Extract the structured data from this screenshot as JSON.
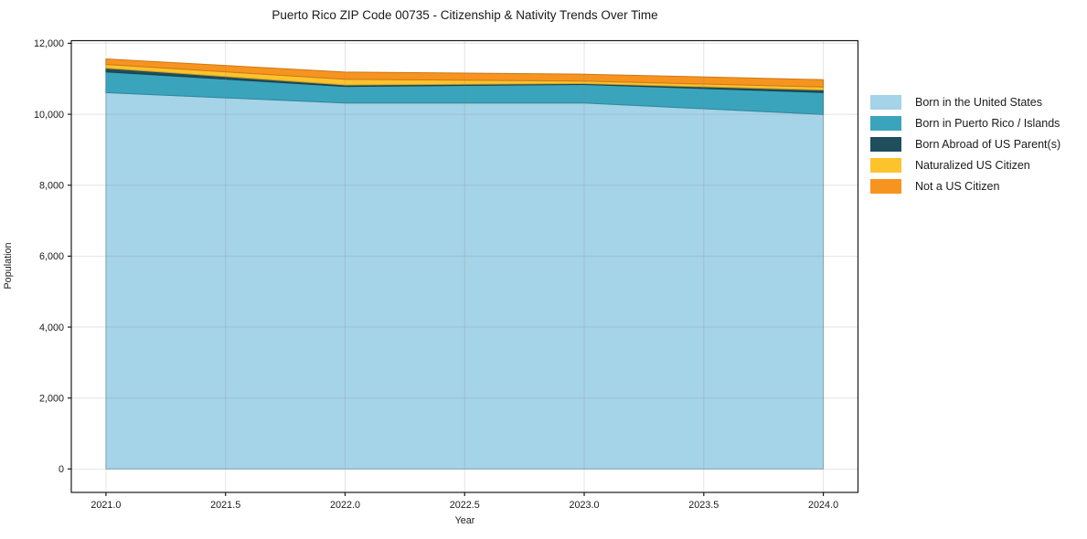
{
  "title": "Puerto Rico ZIP Code 00735 - Citizenship & Nativity Trends Over Time",
  "chart_data": {
    "type": "area",
    "stacked": true,
    "title": "Puerto Rico ZIP Code 00735 - Citizenship & Nativity Trends Over Time",
    "xlabel": "Year",
    "ylabel": "Population",
    "x": [
      2021,
      2022,
      2023,
      2024
    ],
    "series": [
      {
        "name": "Born in the United States",
        "color": "#a5d3e8",
        "values": [
          10610,
          10315,
          10315,
          9995
        ]
      },
      {
        "name": "Born in Puerto Rico / Islands",
        "color": "#3aa4bd",
        "values": [
          585,
          470,
          525,
          620
        ]
      },
      {
        "name": "Born Abroad of US Parent(s)",
        "color": "#1f4e5c",
        "values": [
          105,
          40,
          25,
          70
        ]
      },
      {
        "name": "Naturalized US Citizen",
        "color": "#fcc32d",
        "values": [
          105,
          160,
          70,
          85
        ]
      },
      {
        "name": "Not a US Citizen",
        "color": "#f7941f",
        "values": [
          155,
          205,
          195,
          205
        ]
      }
    ],
    "totals": [
      11560,
      11190,
      11130,
      10975
    ],
    "xlim": [
      2020.855,
      2024.145
    ],
    "ylim": [
      -660,
      12075
    ],
    "x_ticks": [
      {
        "v": 2021.0,
        "label": "2021.0"
      },
      {
        "v": 2021.5,
        "label": "2021.5"
      },
      {
        "v": 2022.0,
        "label": "2022.0"
      },
      {
        "v": 2022.5,
        "label": "2022.5"
      },
      {
        "v": 2023.0,
        "label": "2023.0"
      },
      {
        "v": 2023.5,
        "label": "2023.5"
      },
      {
        "v": 2024.0,
        "label": "2024.0"
      }
    ],
    "y_ticks": [
      {
        "v": 0,
        "label": "0"
      },
      {
        "v": 2000,
        "label": "2,000"
      },
      {
        "v": 4000,
        "label": "4,000"
      },
      {
        "v": 6000,
        "label": "6,000"
      },
      {
        "v": 8000,
        "label": "8,000"
      },
      {
        "v": 10000,
        "label": "10,000"
      },
      {
        "v": 12000,
        "label": "12,000"
      }
    ],
    "grid": true,
    "legend_position": "right"
  },
  "colors": {
    "spine": "#1a1a1a",
    "tick_text": "#1a1a1a",
    "grid": "rgba(130,130,130,0.22)",
    "background": "#ffffff"
  }
}
